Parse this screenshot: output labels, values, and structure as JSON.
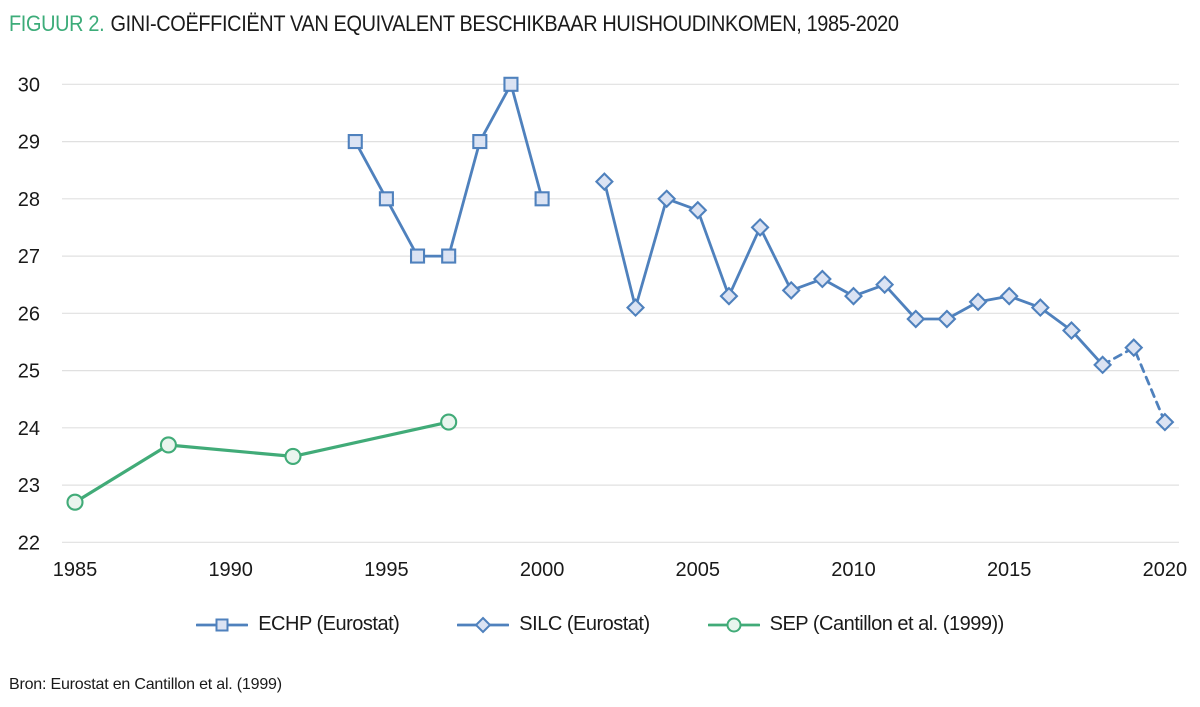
{
  "header": {
    "figure_label": "FIGUUR 2.",
    "title": "GINI-COËFFICIËNT VAN EQUIVALENT BESCHIKBAAR HUISHOUDINKOMEN, 1985-2020"
  },
  "source": "Bron: Eurostat en Cantillon et al. (1999)",
  "colors": {
    "accent_green": "#3cac79",
    "series_blue": "#4f81bd",
    "blue_marker_fill": "#dbe3f3",
    "green_line": "#41ab78",
    "green_marker_fill": "#e9f5ee",
    "grid": "#e0e0e0",
    "text": "#191919"
  },
  "chart_data": {
    "type": "line",
    "title": "FIGUUR 2. GINI-COËFFICIËNT VAN EQUIVALENT BESCHIKBAAR HUISHOUDINKOMEN, 1985-2020",
    "xlabel": "",
    "ylabel": "",
    "xlim": [
      1984.5,
      2020.5
    ],
    "ylim": [
      22,
      30
    ],
    "x_ticks": [
      1985,
      1990,
      1995,
      2000,
      2005,
      2010,
      2015,
      2020
    ],
    "y_ticks": [
      22,
      23,
      24,
      25,
      26,
      27,
      28,
      29,
      30
    ],
    "grid": "horizontal",
    "legend_position": "bottom",
    "series": [
      {
        "name": "ECHP (Eurostat)",
        "id": "echp",
        "marker": "square",
        "line_style": "solid",
        "color": "#4f81bd",
        "marker_fill": "#dbe3f3",
        "points": [
          [
            1994,
            29
          ],
          [
            1995,
            28
          ],
          [
            1996,
            27
          ],
          [
            1997,
            27
          ],
          [
            1998,
            29
          ],
          [
            1999,
            30
          ],
          [
            2000,
            28
          ]
        ]
      },
      {
        "name": "SILC (Eurostat)",
        "id": "silc",
        "marker": "diamond",
        "line_style": "solid",
        "color": "#4f81bd",
        "marker_fill": "#dbe3f3",
        "points": [
          [
            2002,
            28.3
          ],
          [
            2003,
            26.1
          ],
          [
            2004,
            28
          ],
          [
            2005,
            27.8
          ],
          [
            2006,
            26.3
          ],
          [
            2007,
            27.5
          ],
          [
            2008,
            26.4
          ],
          [
            2009,
            26.6
          ],
          [
            2010,
            26.3
          ],
          [
            2011,
            26.5
          ],
          [
            2012,
            25.9
          ],
          [
            2013,
            25.9
          ],
          [
            2014,
            26.2
          ],
          [
            2015,
            26.3
          ],
          [
            2016,
            26.1
          ],
          [
            2017,
            25.7
          ],
          [
            2018,
            25.1
          ]
        ],
        "dashed_tail": [
          [
            2018,
            25.1
          ],
          [
            2019,
            25.4
          ],
          [
            2020,
            24.1
          ]
        ]
      },
      {
        "name": "SEP (Cantillon et al. (1999))",
        "id": "sep",
        "marker": "circle",
        "line_style": "solid",
        "color": "#41ab78",
        "marker_fill": "#e9f5ee",
        "points": [
          [
            1985,
            22.7
          ],
          [
            1988,
            23.7
          ],
          [
            1992,
            23.5
          ],
          [
            1997,
            24.1
          ]
        ]
      }
    ]
  }
}
